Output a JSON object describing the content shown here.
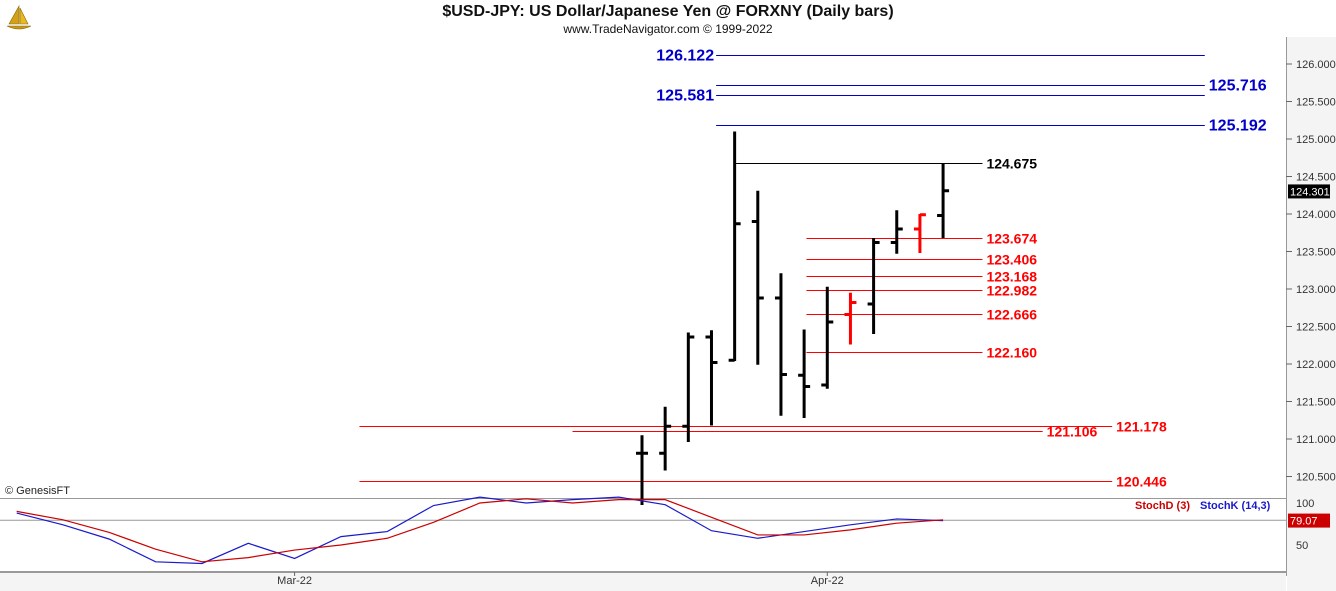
{
  "header": {
    "title": "$USD-JPY:  US Dollar/Japanese Yen @ FORXNY  (Daily bars)",
    "subtitle": "www.TradeNavigator.com © 1999-2022"
  },
  "copyright": "© GenesisFT",
  "colors": {
    "up": "#000000",
    "down": "#ff0000",
    "blue": "#0000cc",
    "red": "#ff0000",
    "black": "#000000",
    "stochK": "#1a1acc",
    "stochD": "#cc0000"
  },
  "chart_data": [
    {
      "type": "bar",
      "title": "$USD-JPY:  US Dollar/Japanese Yen @ FORXNY  (Daily bars)",
      "ylim": [
        120.1,
        126.4
      ],
      "y_ticks": [
        "126.000",
        "125.500",
        "125.000",
        "124.500",
        "124.000",
        "123.500",
        "123.000",
        "122.500",
        "122.000",
        "121.500",
        "121.000",
        "120.500"
      ],
      "x_labels": [
        {
          "label": "Mar-22",
          "bar": -15
        },
        {
          "label": "Apr-22",
          "bar": 8
        }
      ],
      "last_price": "124.301",
      "ohlc": [
        {
          "bar": 0,
          "open": 120.81,
          "high": 121.05,
          "low": 120.12,
          "close": 120.81,
          "color": "up"
        },
        {
          "bar": 1,
          "open": 120.81,
          "high": 121.43,
          "low": 120.58,
          "close": 121.17,
          "color": "up"
        },
        {
          "bar": 2,
          "open": 121.17,
          "high": 122.42,
          "low": 120.96,
          "close": 122.36,
          "color": "up"
        },
        {
          "bar": 3,
          "open": 122.36,
          "high": 122.45,
          "low": 121.18,
          "close": 122.02,
          "color": "up"
        },
        {
          "bar": 4,
          "open": 122.05,
          "high": 125.1,
          "low": 122.04,
          "close": 123.87,
          "color": "up"
        },
        {
          "bar": 5,
          "open": 123.9,
          "high": 124.31,
          "low": 121.99,
          "close": 122.88,
          "color": "up"
        },
        {
          "bar": 6,
          "open": 122.88,
          "high": 123.21,
          "low": 121.31,
          "close": 121.86,
          "color": "up"
        },
        {
          "bar": 7,
          "open": 121.85,
          "high": 122.46,
          "low": 121.28,
          "close": 121.7,
          "color": "up"
        },
        {
          "bar": 8,
          "open": 121.72,
          "high": 123.03,
          "low": 121.67,
          "close": 122.56,
          "color": "up"
        },
        {
          "bar": 9,
          "open": 122.66,
          "high": 122.95,
          "low": 122.26,
          "close": 122.82,
          "color": "down"
        },
        {
          "bar": 10,
          "open": 122.8,
          "high": 123.68,
          "low": 122.4,
          "close": 123.62,
          "color": "up"
        },
        {
          "bar": 11,
          "open": 123.62,
          "high": 124.05,
          "low": 123.47,
          "close": 123.8,
          "color": "up"
        },
        {
          "bar": 12,
          "open": 123.8,
          "high": 124.0,
          "low": 123.48,
          "close": 123.99,
          "color": "down"
        },
        {
          "bar": 13,
          "open": 123.98,
          "high": 124.675,
          "low": 123.68,
          "close": 124.31,
          "color": "up"
        }
      ],
      "levels": [
        {
          "value": 126.122,
          "label": "126.122",
          "color": "blue",
          "from_bar": 3.2,
          "to_bar": 24.3,
          "label_side": "left"
        },
        {
          "value": 125.716,
          "label": "125.716",
          "color": "blue",
          "from_bar": 3.2,
          "to_bar": 24.3,
          "label_side": "right"
        },
        {
          "value": 125.581,
          "label": "125.581",
          "color": "blue",
          "from_bar": 3.2,
          "to_bar": 24.3,
          "label_side": "left"
        },
        {
          "value": 125.192,
          "label": "125.192",
          "color": "blue",
          "from_bar": 3.2,
          "to_bar": 24.3,
          "label_side": "right"
        },
        {
          "value": 124.675,
          "label": "124.675",
          "color": "black",
          "from_bar": 4.0,
          "to_bar": 14.7,
          "label_side": "right"
        },
        {
          "value": 123.674,
          "label": "123.674",
          "color": "red",
          "from_bar": 7.1,
          "to_bar": 14.7,
          "label_side": "right"
        },
        {
          "value": 123.406,
          "label": "123.406",
          "color": "red",
          "from_bar": 7.1,
          "to_bar": 14.7,
          "label_side": "right"
        },
        {
          "value": 123.168,
          "label": "123.168",
          "color": "red",
          "from_bar": 7.1,
          "to_bar": 14.7,
          "label_side": "right"
        },
        {
          "value": 122.982,
          "label": "122.982",
          "color": "red",
          "from_bar": 7.1,
          "to_bar": 14.7,
          "label_side": "right"
        },
        {
          "value": 122.666,
          "label": "122.666",
          "color": "red",
          "from_bar": 7.1,
          "to_bar": 14.7,
          "label_side": "right"
        },
        {
          "value": 122.16,
          "label": "122.160",
          "color": "red",
          "from_bar": 7.1,
          "to_bar": 14.7,
          "label_side": "right"
        },
        {
          "value": 121.178,
          "label": "121.178",
          "color": "red",
          "from_bar": -12.2,
          "to_bar": 20.3,
          "label_side": "right"
        },
        {
          "value": 121.106,
          "label": "121.106",
          "color": "red",
          "from_bar": -3.0,
          "to_bar": 17.3,
          "label_side": "right"
        },
        {
          "value": 120.446,
          "label": "120.446",
          "color": "red",
          "from_bar": -12.2,
          "to_bar": 20.3,
          "label_side": "right"
        }
      ]
    },
    {
      "type": "line",
      "ylim": [
        0,
        100
      ],
      "y_ticks": [
        "100",
        "50"
      ],
      "legend": [
        "StochD (3)",
        "StochK (14,3)"
      ],
      "last_value": "79.07",
      "series": [
        {
          "name": "StochK (14,3)",
          "color": "stochK",
          "x": [
            -27,
            -25,
            -23,
            -21,
            -19,
            -17,
            -15,
            -13,
            -11,
            -9,
            -7,
            -5,
            -3,
            -1,
            1,
            3,
            5,
            7,
            9,
            11,
            13
          ],
          "values": [
            88,
            74,
            57,
            30,
            28,
            52,
            34,
            60,
            66,
            97,
            107,
            100,
            104,
            107,
            98,
            67,
            58,
            66,
            74,
            81,
            79
          ]
        },
        {
          "name": "StochD (3)",
          "color": "stochD",
          "x": [
            -27,
            -25,
            -23,
            -21,
            -19,
            -17,
            -15,
            -13,
            -11,
            -9,
            -7,
            -5,
            -3,
            -1,
            1,
            3,
            5,
            7,
            9,
            11,
            13
          ],
          "values": [
            90,
            80,
            65,
            45,
            30,
            35,
            44,
            50,
            58,
            77,
            100,
            105,
            100,
            104,
            104,
            83,
            62,
            62,
            68,
            76,
            80
          ]
        }
      ]
    }
  ]
}
